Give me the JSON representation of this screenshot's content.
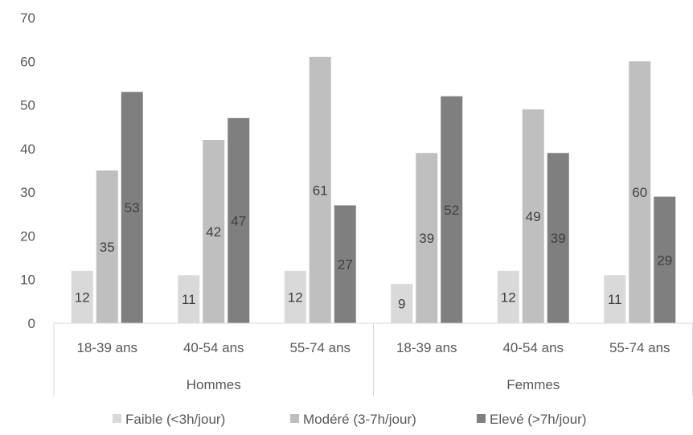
{
  "chart_data": {
    "type": "bar",
    "groups": [
      {
        "name": "Hommes",
        "categories": [
          "18-39 ans",
          "40-54 ans",
          "55-74 ans"
        ]
      },
      {
        "name": "Femmes",
        "categories": [
          "18-39 ans",
          "40-54 ans",
          "55-74 ans"
        ]
      }
    ],
    "series": [
      {
        "name": "Faible (<3h/jour)",
        "color": "#d9d9d9",
        "values": [
          12,
          11,
          12,
          9,
          12,
          11
        ]
      },
      {
        "name": "Modéré (3-7h/jour)",
        "color": "#bfbfbf",
        "values": [
          35,
          42,
          61,
          39,
          49,
          60
        ]
      },
      {
        "name": "Elevé (>7h/jour)",
        "color": "#7f7f7f",
        "values": [
          53,
          47,
          27,
          52,
          39,
          29
        ]
      }
    ],
    "ylim": [
      0,
      70
    ],
    "yticks": [
      0,
      10,
      20,
      30,
      40,
      50,
      60,
      70
    ],
    "grid": false,
    "legend_position": "bottom",
    "data_labels": true
  }
}
